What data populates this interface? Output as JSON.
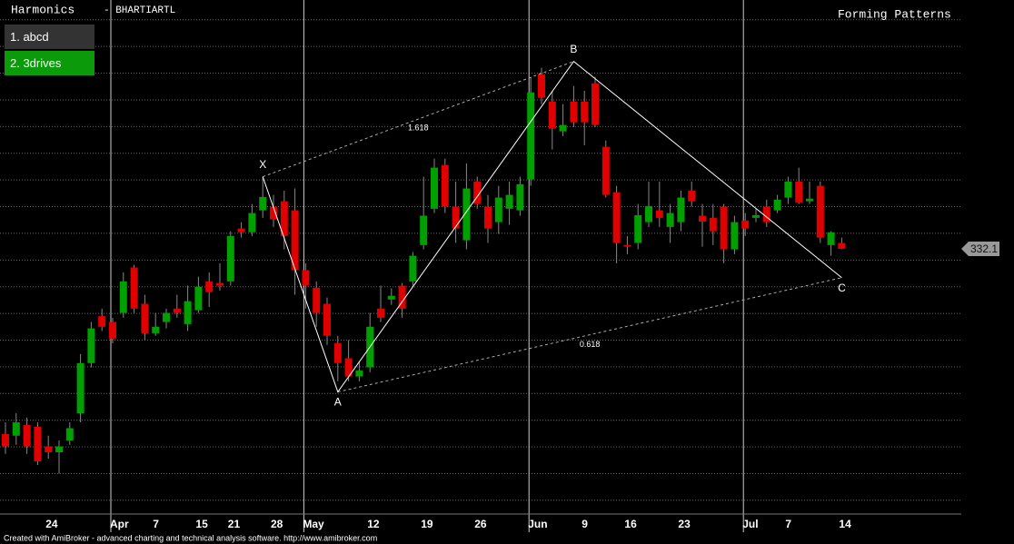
{
  "header": {
    "title": "Harmonics",
    "symbol": "- BHARTIARTL",
    "status": "Forming Patterns"
  },
  "menu": [
    "1. abcd",
    "2. 3drives"
  ],
  "chart_data": {
    "type": "candlestick",
    "categories": [
      null,
      null,
      null,
      null,
      "24",
      null,
      null,
      null,
      null,
      null,
      "Apr",
      null,
      null,
      null,
      "7",
      null,
      null,
      null,
      "15",
      null,
      null,
      "21",
      null,
      null,
      null,
      "28",
      null,
      null,
      "May",
      null,
      null,
      null,
      null,
      null,
      "12",
      null,
      null,
      null,
      null,
      "19",
      null,
      null,
      null,
      null,
      "26",
      null,
      null,
      null,
      null,
      "Jun",
      null,
      null,
      null,
      null,
      "9",
      null,
      null,
      null,
      "16",
      null,
      null,
      null,
      null,
      "23",
      null,
      null,
      null,
      null,
      null,
      "Jul",
      null,
      null,
      null,
      "7",
      null,
      null,
      null,
      null,
      "14"
    ],
    "open": [
      297.4,
      297.1,
      299.1,
      298.8,
      295.1,
      294.0,
      296.2,
      301.3,
      310.7,
      319.5,
      318.4,
      320.1,
      328.6,
      321.8,
      316.3,
      318.4,
      320.9,
      318.0,
      320.6,
      326.0,
      325.7,
      326.0,
      335.9,
      335.2,
      339.3,
      340.0,
      341.0,
      339.3,
      328.1,
      324.8,
      321.8,
      314.4,
      311.6,
      308.2,
      309.9,
      320.9,
      322.6,
      325.2,
      326.0,
      332.8,
      339.6,
      347.8,
      340.0,
      333.7,
      344.7,
      340.0,
      337.1,
      339.6,
      339.3,
      345.1,
      364.8,
      359.7,
      354.1,
      359.7,
      359.7,
      363.1,
      351.2,
      342.7,
      332.8,
      333.2,
      337.1,
      339.3,
      336.2,
      337.1,
      343.0,
      338.3,
      337.9,
      340.0,
      332.0,
      337.4,
      337.9,
      340.0,
      339.3,
      341.7,
      344.7,
      341.0,
      343.9,
      332.8,
      333.2
    ],
    "high": [
      299.6,
      301.3,
      300.5,
      299.6,
      297.1,
      296.2,
      299.6,
      312.4,
      318.4,
      320.9,
      319.2,
      327.7,
      329.1,
      323.5,
      320.1,
      320.9,
      323.5,
      325.2,
      326.9,
      327.7,
      329.4,
      335.4,
      337.1,
      340.5,
      345.6,
      342.2,
      343.0,
      343.4,
      329.4,
      326.0,
      323.0,
      315.8,
      315.0,
      311.0,
      320.1,
      325.2,
      324.7,
      325.7,
      331.5,
      345.6,
      349.0,
      349.0,
      344.7,
      348.1,
      345.6,
      342.2,
      343.9,
      344.7,
      345.6,
      364.3,
      366.0,
      361.7,
      359.2,
      362.6,
      361.7,
      364.3,
      352.4,
      343.9,
      334.5,
      340.5,
      344.7,
      344.7,
      340.5,
      343.0,
      344.7,
      340.5,
      340.5,
      340.5,
      338.3,
      338.8,
      339.6,
      341.3,
      342.2,
      345.6,
      347.3,
      344.7,
      344.7,
      335.4,
      334.2
    ],
    "low": [
      293.7,
      295.4,
      293.7,
      291.6,
      292.8,
      290.0,
      295.4,
      299.6,
      309.9,
      316.7,
      314.4,
      319.2,
      320.1,
      315.0,
      315.8,
      317.2,
      319.2,
      316.7,
      320.1,
      321.2,
      324.3,
      325.2,
      334.2,
      334.5,
      337.9,
      336.2,
      332.0,
      323.5,
      320.9,
      317.5,
      314.1,
      307.3,
      307.3,
      307.3,
      309.0,
      318.4,
      321.6,
      319.2,
      325.2,
      332.0,
      338.8,
      338.8,
      333.2,
      332.0,
      339.6,
      333.2,
      334.9,
      336.6,
      338.3,
      343.9,
      359.2,
      350.7,
      353.2,
      354.9,
      351.5,
      354.9,
      341.7,
      329.4,
      331.1,
      332.0,
      336.2,
      336.2,
      333.2,
      335.4,
      340.0,
      332.5,
      332.8,
      329.4,
      331.1,
      334.5,
      337.1,
      336.2,
      338.8,
      340.5,
      340.5,
      340.5,
      333.2,
      330.8,
      332.0
    ],
    "close": [
      295.1,
      299.6,
      295.1,
      292.3,
      294.0,
      295.1,
      298.5,
      310.7,
      317.2,
      317.5,
      315.3,
      326.0,
      320.9,
      316.3,
      317.5,
      320.1,
      320.1,
      322.3,
      325.0,
      324.0,
      325.2,
      334.5,
      335.2,
      338.8,
      341.8,
      337.6,
      334.5,
      328.1,
      325.2,
      320.1,
      315.8,
      310.7,
      308.2,
      309.3,
      317.5,
      319.2,
      323.3,
      320.9,
      330.8,
      338.3,
      347.3,
      340.0,
      335.9,
      343.4,
      340.5,
      335.9,
      341.7,
      342.2,
      344.2,
      361.4,
      360.4,
      354.6,
      355.3,
      355.8,
      355.8,
      355.3,
      342.2,
      333.2,
      332.5,
      338.4,
      340.1,
      337.9,
      338.8,
      341.7,
      341.0,
      337.2,
      335.4,
      332.0,
      337.1,
      335.9,
      338.4,
      337.1,
      341.3,
      344.7,
      340.8,
      341.5,
      334.2,
      335.2,
      332.1
    ],
    "up_color": "#00a000",
    "down_color": "#e00000",
    "ylim": [
      282.6,
      378.7
    ],
    "yticks": [
      285,
      290,
      295,
      300,
      305,
      310,
      315,
      320,
      325,
      330,
      335,
      340,
      345,
      350,
      355,
      360,
      365,
      370,
      375
    ],
    "grid": true,
    "pattern": {
      "points": [
        {
          "label": "X",
          "index": 24,
          "value": 345.6
        },
        {
          "label": "A",
          "index": 31,
          "value": 305.3
        },
        {
          "label": "B",
          "index": 53,
          "value": 367.2
        },
        {
          "label": "C",
          "index": 78,
          "value": 326.7
        }
      ],
      "ratios": [
        1.618,
        0.618
      ]
    }
  },
  "footer": "Created with AmiBroker - advanced charting and technical analysis software. http://www.amibroker.com"
}
